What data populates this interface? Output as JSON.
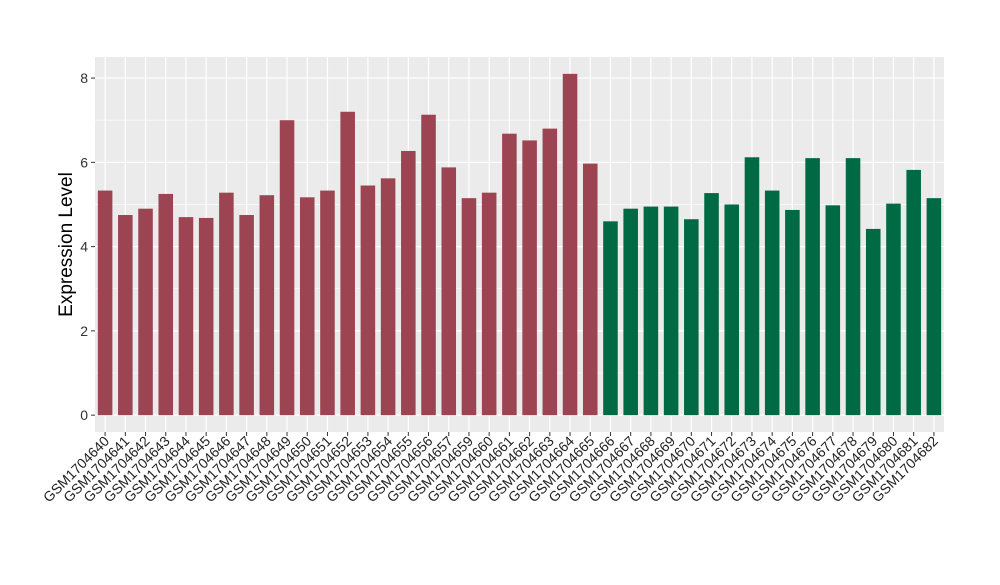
{
  "chart_data": {
    "type": "bar",
    "title": "",
    "xlabel": "",
    "ylabel": "Expression Level",
    "ylim": [
      -0.4,
      8.5
    ],
    "yticks": [
      0,
      2,
      4,
      6,
      8
    ],
    "grid": true,
    "colors": {
      "group_a": "#9c4452",
      "group_b": "#006a44",
      "panel": "#ebebeb",
      "grid": "#ffffff"
    },
    "categories": [
      "GSM1704640",
      "GSM1704641",
      "GSM1704642",
      "GSM1704643",
      "GSM1704644",
      "GSM1704645",
      "GSM1704646",
      "GSM1704647",
      "GSM1704648",
      "GSM1704649",
      "GSM1704650",
      "GSM1704651",
      "GSM1704652",
      "GSM1704653",
      "GSM1704654",
      "GSM1704655",
      "GSM1704656",
      "GSM1704657",
      "GSM1704659",
      "GSM1704660",
      "GSM1704661",
      "GSM1704662",
      "GSM1704663",
      "GSM1704664",
      "GSM1704665",
      "GSM1704666",
      "GSM1704667",
      "GSM1704668",
      "GSM1704669",
      "GSM1704670",
      "GSM1704671",
      "GSM1704672",
      "GSM1704673",
      "GSM1704674",
      "GSM1704675",
      "GSM1704676",
      "GSM1704677",
      "GSM1704678",
      "GSM1704679",
      "GSM1704680",
      "GSM1704681",
      "GSM1704682"
    ],
    "values": [
      5.33,
      4.75,
      4.9,
      5.25,
      4.7,
      4.68,
      5.28,
      4.75,
      5.22,
      7.0,
      5.17,
      5.33,
      7.2,
      5.45,
      5.62,
      6.27,
      7.13,
      5.88,
      5.15,
      5.28,
      6.68,
      6.52,
      6.8,
      8.1,
      5.97,
      4.6,
      4.9,
      4.95,
      4.95,
      4.65,
      5.27,
      5.0,
      6.12,
      5.33,
      4.87,
      6.1,
      4.98,
      6.1,
      4.42,
      5.02,
      5.82,
      5.15
    ],
    "groups": [
      "a",
      "a",
      "a",
      "a",
      "a",
      "a",
      "a",
      "a",
      "a",
      "a",
      "a",
      "a",
      "a",
      "a",
      "a",
      "a",
      "a",
      "a",
      "a",
      "a",
      "a",
      "a",
      "a",
      "a",
      "a",
      "b",
      "b",
      "b",
      "b",
      "b",
      "b",
      "b",
      "b",
      "b",
      "b",
      "b",
      "b",
      "b",
      "b",
      "b",
      "b",
      "b"
    ]
  }
}
